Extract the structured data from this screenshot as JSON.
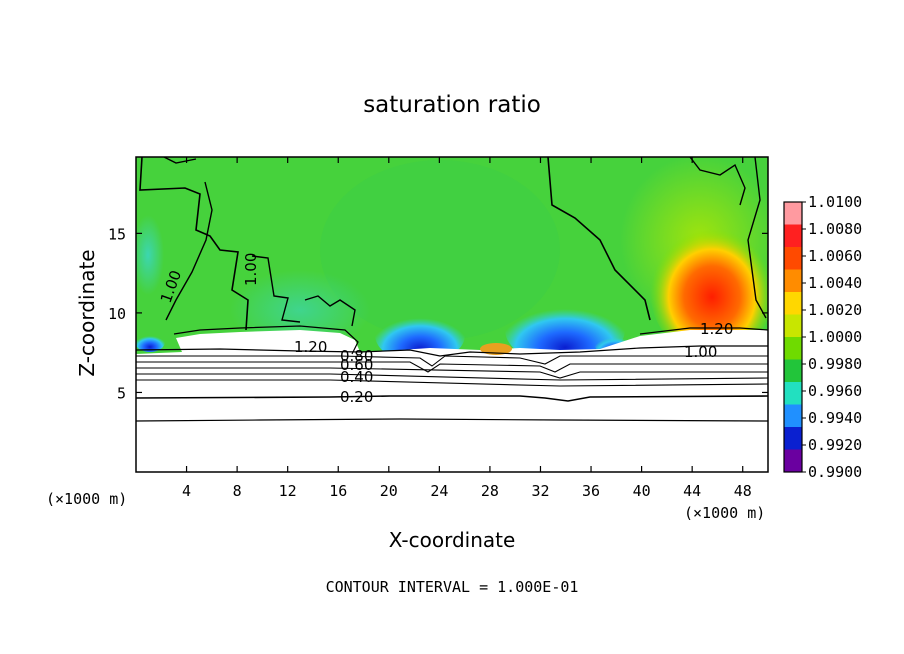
{
  "chart_data": {
    "type": "heatmap",
    "title": "saturation ratio",
    "xlabel": "X-coordinate",
    "ylabel": "Z-coordinate",
    "x_unit": "(×1000 m)",
    "y_unit": "(×1000 m)",
    "xlim": [
      0,
      50
    ],
    "ylim": [
      0,
      19.8
    ],
    "x_ticks": [
      4,
      8,
      12,
      16,
      20,
      24,
      28,
      32,
      36,
      40,
      44,
      48
    ],
    "y_ticks": [
      5,
      10,
      15
    ],
    "colorbar": {
      "ticks": [
        "1.0100",
        "1.0080",
        "1.0060",
        "1.0040",
        "1.0020",
        "1.0000",
        "0.9980",
        "0.9960",
        "0.9940",
        "0.9920",
        "0.9900"
      ],
      "colors": [
        "#ff9aa0",
        "#ff2020",
        "#ff4a00",
        "#ff8c00",
        "#ffd700",
        "#c8e600",
        "#6fdb00",
        "#22c53a",
        "#22e0c0",
        "#2090ff",
        "#0a20d0",
        "#6a00a0"
      ]
    },
    "field_colors": {
      "background": "#46d23c",
      "moist_high": "#ff2a00",
      "dry_low": "#1428d0",
      "cloud_free": "#ffffff"
    },
    "contour_labels": [
      "1.00",
      "1.00",
      "1.20",
      "0.80",
      "0.60",
      "0.40",
      "0.20",
      "1.20",
      "1.00"
    ],
    "contour_levels_below": [
      0.2,
      0.4,
      0.6,
      0.8,
      1.0,
      1.2
    ],
    "footer": "CONTOUR INTERVAL = 1.000E-01"
  }
}
